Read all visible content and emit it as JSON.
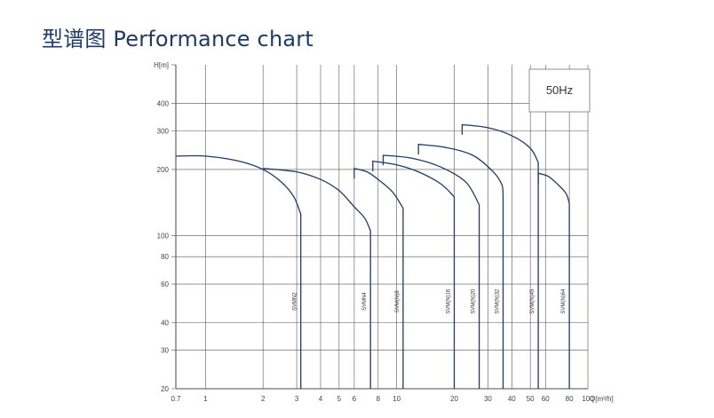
{
  "header": {
    "title": "型谱图  Performance chart"
  },
  "chart_data": {
    "type": "line",
    "title": "",
    "xlabel": "Q[m³/h]",
    "ylabel": "H[m]",
    "x_scale": "log",
    "y_scale": "log",
    "xlim": [
      0.7,
      100
    ],
    "ylim": [
      20,
      600
    ],
    "grid": true,
    "frequency_label": "50Hz",
    "x_ticks": [
      "0.7",
      "1",
      "2",
      "3",
      "4",
      "5",
      "6",
      "8",
      "10",
      "20",
      "30",
      "40",
      "50",
      "60",
      "80",
      "100"
    ],
    "y_ticks": [
      "20",
      "30",
      "40",
      "60",
      "80",
      "100",
      "200",
      "300",
      "400"
    ],
    "series": [
      {
        "name": "SVMN2",
        "points": [
          [
            0.7,
            230
          ],
          [
            1,
            230
          ],
          [
            1.5,
            218
          ],
          [
            2,
            200
          ],
          [
            2.5,
            175
          ],
          [
            2.9,
            150
          ],
          [
            3.15,
            125
          ]
        ]
      },
      {
        "name": "SVMN4",
        "points": [
          [
            2,
            202
          ],
          [
            3,
            195
          ],
          [
            4,
            180
          ],
          [
            5,
            160
          ],
          [
            6,
            135
          ],
          [
            6.8,
            120
          ],
          [
            7.3,
            105
          ]
        ]
      },
      {
        "name": "SVM(N)8",
        "points": [
          [
            6,
            202
          ],
          [
            7,
            195
          ],
          [
            8,
            180
          ],
          [
            9.5,
            158
          ],
          [
            10.8,
            133
          ]
        ]
      },
      {
        "name": "SVM(N)16",
        "points": [
          [
            7.5,
            218
          ],
          [
            10,
            210
          ],
          [
            13,
            195
          ],
          [
            17,
            172
          ],
          [
            20,
            150
          ]
        ]
      },
      {
        "name": "SVM(N)20",
        "points": [
          [
            8.5,
            232
          ],
          [
            12,
            225
          ],
          [
            17,
            205
          ],
          [
            23,
            175
          ],
          [
            27,
            138
          ]
        ]
      },
      {
        "name": "SVM(N)32",
        "points": [
          [
            13,
            260
          ],
          [
            18,
            252
          ],
          [
            25,
            232
          ],
          [
            32,
            195
          ],
          [
            35.5,
            170
          ],
          [
            36,
            150
          ]
        ]
      },
      {
        "name": "SVM(N)45",
        "points": [
          [
            22,
            320
          ],
          [
            30,
            310
          ],
          [
            40,
            285
          ],
          [
            50,
            250
          ],
          [
            55,
            215
          ]
        ]
      },
      {
        "name": "SVM(N)64",
        "points": [
          [
            55,
            192
          ],
          [
            62,
            186
          ],
          [
            70,
            170
          ],
          [
            77,
            155
          ],
          [
            80,
            140
          ]
        ]
      }
    ],
    "colors": {
      "curve": "#1f3b63",
      "grid": "#555555",
      "axis": "#444444",
      "title": "#1f3b63"
    }
  }
}
